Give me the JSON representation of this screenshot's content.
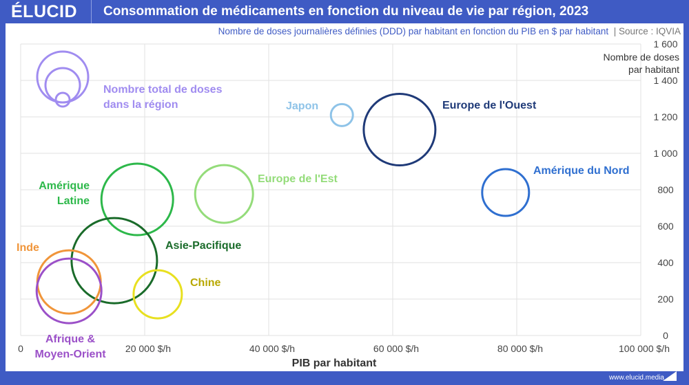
{
  "brand": {
    "logo": "ÉLUCID",
    "footer": "www.elucid.media"
  },
  "header": {
    "title": "Consommation de médicaments en fonction du niveau de vie par région, 2023",
    "subtitle": "Nombre de doses journalières définies (DDD) par habitant en fonction du PIB en $ par habitant",
    "source": "|  Source : IQVIA"
  },
  "chart_data": {
    "type": "scatter",
    "xlabel": "PIB par habitant",
    "ylabel": [
      "Nombre de doses",
      "par habitant"
    ],
    "xlim": [
      0,
      100000
    ],
    "ylim": [
      0,
      1600
    ],
    "x_ticks": [
      "0",
      "20 000 $/h",
      "40 000 $/h",
      "60 000 $/h",
      "80 000 $/h",
      "100 000 $/h"
    ],
    "y_ticks": [
      "0",
      "200",
      "400",
      "600",
      "800",
      "1 000",
      "1 200",
      "1 400",
      "1 600"
    ],
    "grid": true,
    "legend": {
      "text": [
        "Nombre total de doses",
        "dans la région"
      ],
      "color": "#a08cf0",
      "placement": "top-left"
    },
    "series": [
      {
        "name": "Japon",
        "x": 51800,
        "y": 1210,
        "size": 16,
        "color": "#8ec3e8",
        "label": [
          "Japon"
        ]
      },
      {
        "name": "Europe de l'Ouest",
        "x": 61100,
        "y": 1130,
        "size": 52,
        "color": "#1f3a78",
        "label": [
          "Europe de l'Ouest"
        ]
      },
      {
        "name": "Amérique du Nord",
        "x": 78200,
        "y": 785,
        "size": 34,
        "color": "#2f6fd0",
        "label": [
          "Amérique du Nord"
        ]
      },
      {
        "name": "Europe de l'Est",
        "x": 32800,
        "y": 777,
        "size": 42,
        "color": "#94dc7a",
        "label": [
          "Europe de l'Est"
        ]
      },
      {
        "name": "Amérique Latine",
        "x": 18800,
        "y": 747,
        "size": 52,
        "color": "#2db84a",
        "label": [
          "Amérique",
          "Latine"
        ]
      },
      {
        "name": "Asie-Pacifique",
        "x": 15100,
        "y": 411,
        "size": 62,
        "color": "#1a6b2a",
        "label": [
          "Asie-Pacifique"
        ]
      },
      {
        "name": "Chine",
        "x": 22100,
        "y": 226,
        "size": 35,
        "color": "#e8e020",
        "labelColor": "#b8a800",
        "label": [
          "Chine"
        ]
      },
      {
        "name": "Inde",
        "x": 7800,
        "y": 294,
        "size": 46,
        "color": "#f0953a",
        "label": [
          "Inde"
        ]
      },
      {
        "name": "Afrique & Moyen-Orient",
        "x": 7800,
        "y": 245,
        "size": 47,
        "color": "#9b50c8",
        "label": [
          "Afrique &",
          "Moyen-Orient"
        ]
      }
    ]
  }
}
